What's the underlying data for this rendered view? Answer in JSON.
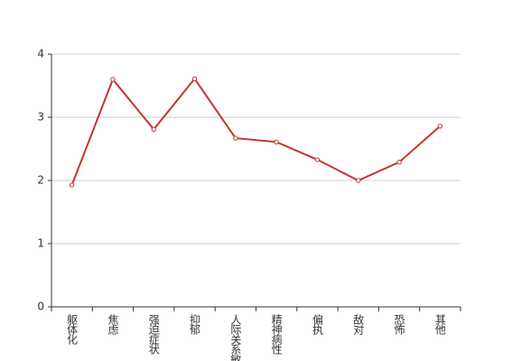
{
  "chart_data": {
    "type": "line",
    "categories": [
      "躯体化",
      "焦虑",
      "强迫症状",
      "抑郁",
      "人际关系敏感",
      "精神病性",
      "偏执",
      "敌对",
      "恐怖",
      "其他"
    ],
    "series": [
      {
        "color": "#c23531",
        "values": [
          1.93,
          3.6,
          2.81,
          3.61,
          2.67,
          2.61,
          2.33,
          2.0,
          2.29,
          2.86
        ]
      }
    ],
    "ylim": [
      0,
      4
    ],
    "yticks": [
      0,
      1,
      2,
      3,
      4
    ],
    "grid": true
  }
}
